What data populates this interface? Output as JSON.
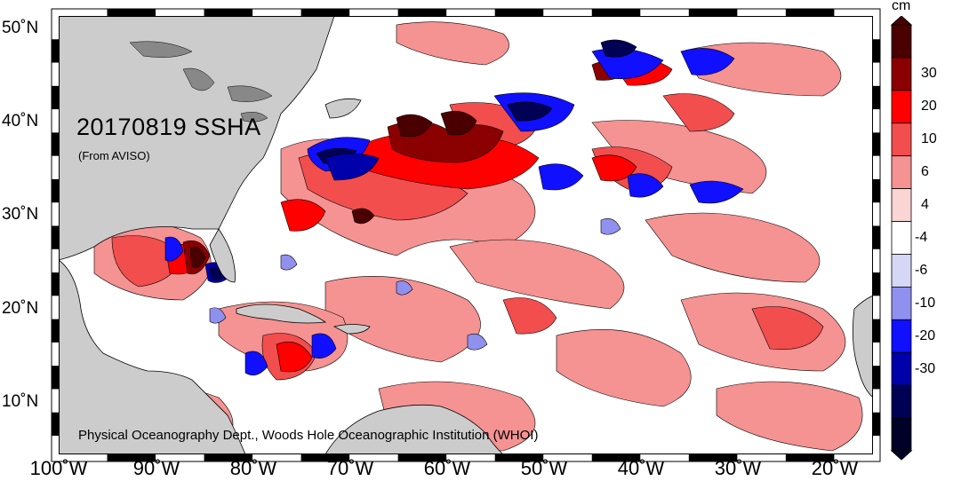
{
  "title": "20170819 SSHA",
  "subtitle": "(From AVISO)",
  "credit": "Physical Oceanography Dept., Woods Hole Oceanographic Institution (WHOI)",
  "lat_labels": [
    "50˚N",
    "40˚N",
    "30˚N",
    "20˚N",
    "10˚N"
  ],
  "lon_labels": [
    "100˚W",
    "90˚W",
    "80˚W",
    "70˚W",
    "60˚W",
    "50˚W",
    "40˚W",
    "30˚W",
    "20˚W"
  ],
  "colorbar": {
    "unit": "cm",
    "labels": [
      "30",
      "20",
      "10",
      "6",
      "4",
      "-4",
      "-6",
      "-10",
      "-20",
      "-30"
    ],
    "colors": [
      "#4a0000",
      "#8b0000",
      "#ff0000",
      "#f24e4e",
      "#f59292",
      "#fbd4d4",
      "#ffffff",
      "#d6d6f6",
      "#9090ee",
      "#1010ff",
      "#0000aa",
      "#000055",
      "#000028"
    ]
  },
  "colors": {
    "land": "#cccccc",
    "lake": "#888888",
    "ocean_background": "#ffffff"
  }
}
